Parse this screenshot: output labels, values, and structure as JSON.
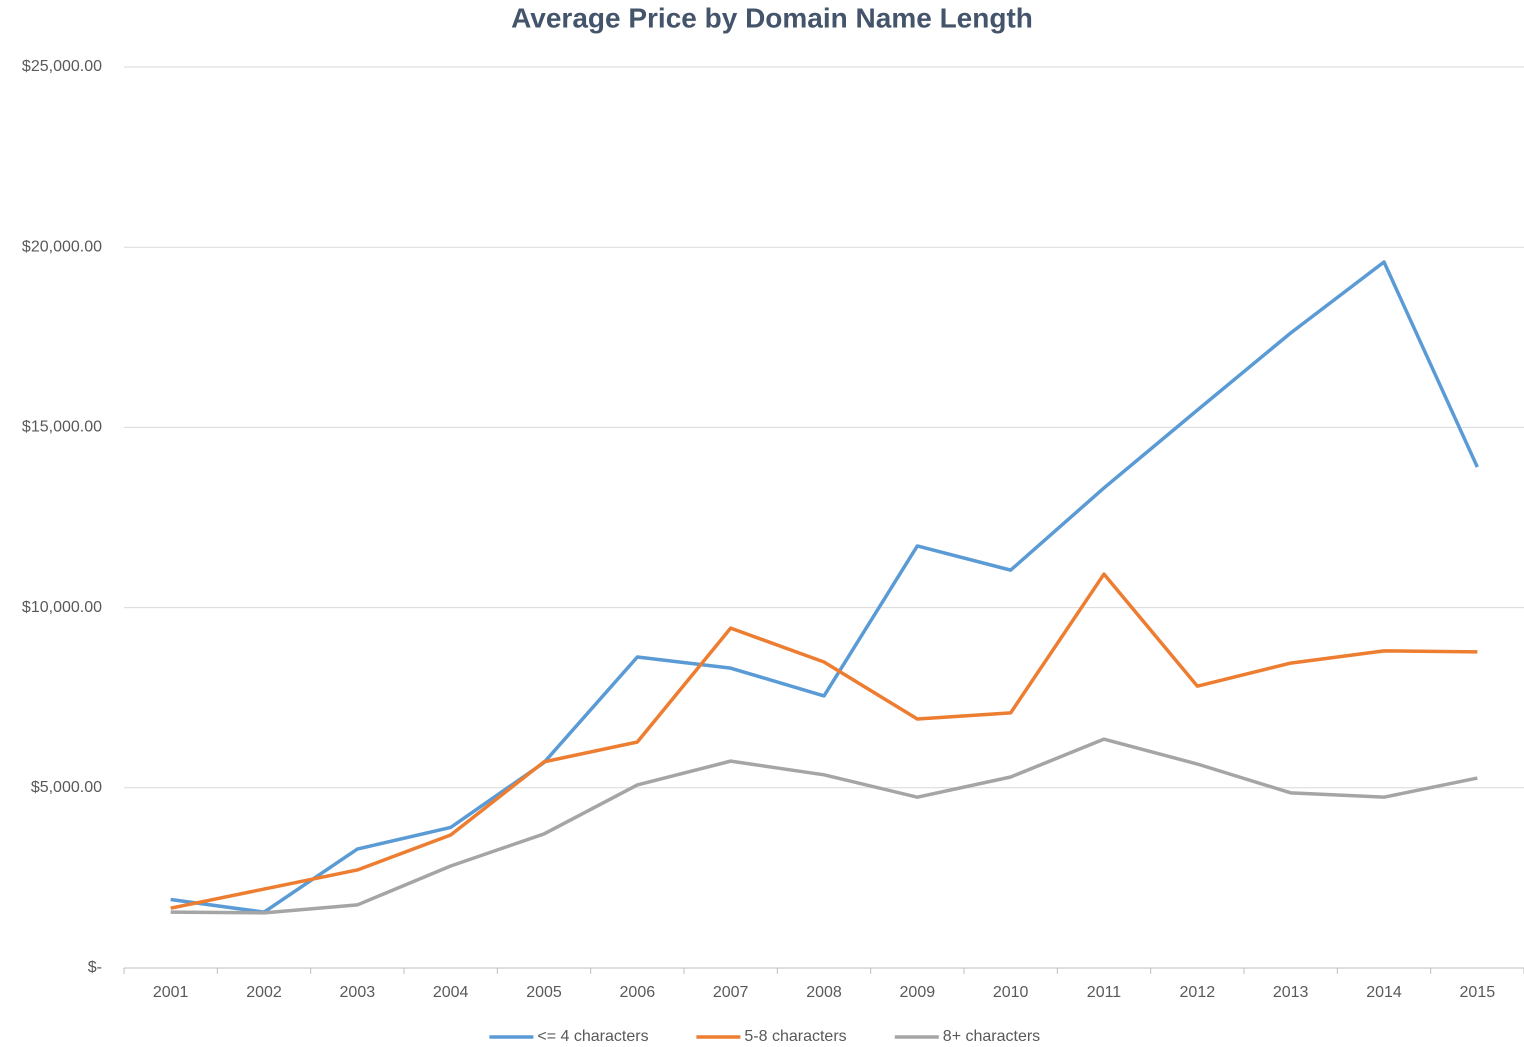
{
  "chart_data": {
    "type": "line",
    "title": "Average Price by Domain Name Length",
    "categories": [
      "2001",
      "2002",
      "2003",
      "2004",
      "2005",
      "2006",
      "2007",
      "2008",
      "2009",
      "2010",
      "2011",
      "2012",
      "2013",
      "2014",
      "2015"
    ],
    "series": [
      {
        "name": "<= 4 characters",
        "color": "#5b9bd5",
        "values": [
          1900,
          1550,
          3300,
          3900,
          5700,
          8630,
          8320,
          7550,
          11710,
          11040,
          13320,
          15480,
          17620,
          19590,
          13900
        ]
      },
      {
        "name": "5-8 characters",
        "color": "#ed7d31",
        "values": [
          1660,
          2190,
          2720,
          3690,
          5720,
          6270,
          9430,
          8490,
          6910,
          7080,
          10930,
          7820,
          8460,
          8800,
          8770
        ]
      },
      {
        "name": "8+ characters",
        "color": "#a5a5a5",
        "values": [
          1550,
          1530,
          1750,
          2830,
          3720,
          5080,
          5740,
          5360,
          4740,
          5300,
          6350,
          5660,
          4860,
          4740,
          5270
        ]
      }
    ],
    "ylim": [
      0,
      25000
    ],
    "yticks": [
      {
        "value": 0,
        "label": "$-"
      },
      {
        "value": 5000,
        "label": "$5,000.00"
      },
      {
        "value": 10000,
        "label": "$10,000.00"
      },
      {
        "value": 15000,
        "label": "$15,000.00"
      },
      {
        "value": 20000,
        "label": "$20,000.00"
      },
      {
        "value": 25000,
        "label": "$25,000.00"
      }
    ],
    "grid": true,
    "legend": "bottom"
  }
}
